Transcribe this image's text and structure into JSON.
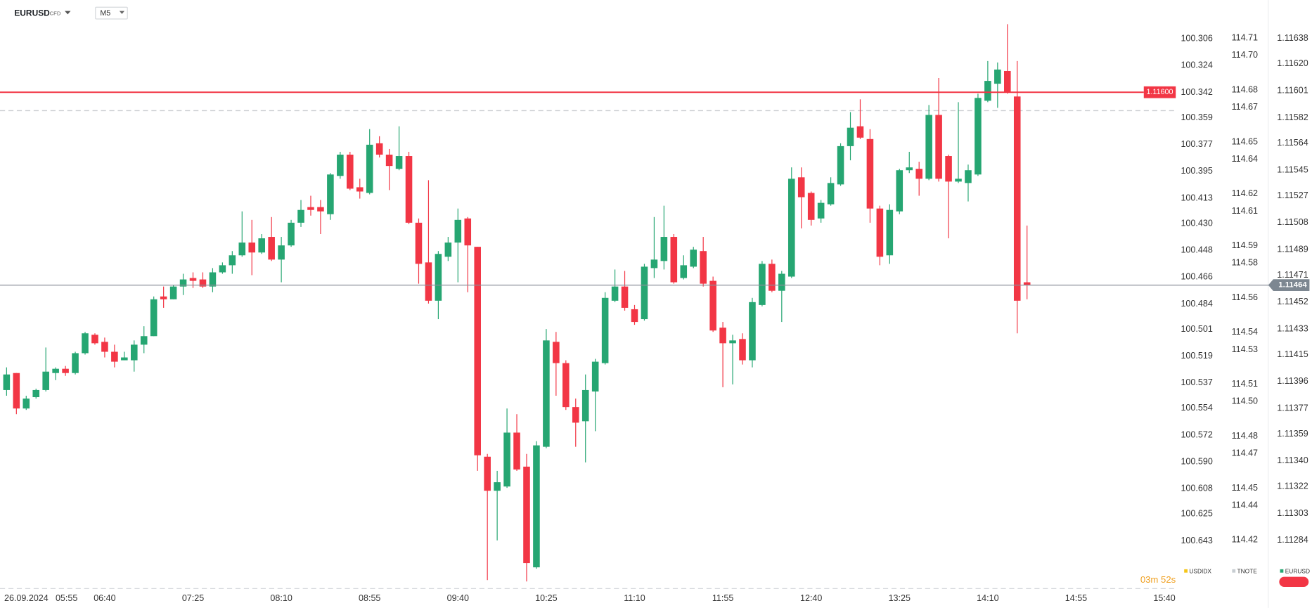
{
  "chart_data": {
    "type": "candlestick",
    "symbol": "EURUSD",
    "instrument_type": "CFD",
    "timeframe": "M5",
    "date": "26.09.2024",
    "categories": [
      null,
      "05:55",
      null,
      null,
      null,
      null,
      null,
      null,
      null,
      null,
      "06:40",
      null,
      null,
      null,
      null,
      null,
      null,
      null,
      null,
      "07:25",
      null,
      null,
      null,
      null,
      null,
      null,
      null,
      null,
      "08:10",
      null,
      null,
      null,
      null,
      null,
      null,
      null,
      null,
      "08:55",
      null,
      null,
      null,
      null,
      null,
      null,
      null,
      null,
      "09:40",
      null,
      null,
      null,
      null,
      null,
      null,
      null,
      null,
      "10:25",
      null,
      null,
      null,
      null,
      null,
      null,
      null,
      null,
      "11:10",
      null,
      null,
      null,
      null,
      null,
      null,
      null,
      null,
      "11:55",
      null,
      null,
      null,
      null,
      null,
      null,
      null,
      null,
      "12:40",
      null,
      null,
      null,
      null,
      null,
      null,
      null,
      null,
      "13:25",
      null,
      null,
      null,
      null,
      null,
      null,
      null,
      null,
      "14:10",
      null,
      null,
      null,
      null,
      null,
      null,
      null,
      null,
      "14:55",
      null,
      null,
      null,
      null,
      null,
      null,
      null,
      null,
      "15:40",
      null
    ],
    "open": [
      1.1139,
      1.11402,
      1.11377,
      1.11385,
      1.1139,
      1.11402,
      1.11405,
      1.11402,
      1.11416,
      1.11429,
      1.11424,
      1.11417,
      1.11411,
      1.11411,
      1.11422,
      1.11428,
      1.11456,
      1.11454,
      1.11463,
      1.11469,
      1.11468,
      1.11463,
      1.11473,
      1.11478,
      1.11485,
      1.11494,
      1.11487,
      1.11498,
      1.11482,
      1.11492,
      1.11508,
      1.11519,
      1.11519,
      1.11514,
      1.11541,
      1.11556,
      1.11533,
      1.11529,
      1.11564,
      1.11556,
      1.11546,
      1.11555,
      1.11508,
      1.1148,
      1.11453,
      1.11484,
      1.11494,
      1.11511,
      1.11491,
      1.11343,
      1.11319,
      1.11322,
      1.1136,
      1.11336,
      1.11265,
      1.1135,
      1.11424,
      1.11409,
      1.11378,
      1.11368,
      1.11389,
      1.11409,
      1.11453,
      1.11463,
      1.11447,
      1.1144,
      1.11476,
      1.11481,
      1.11498,
      1.11469,
      1.11477,
      1.11488,
      1.11467,
      1.11434,
      1.11423,
      1.11426,
      1.11411,
      1.1145,
      1.11479,
      1.1146,
      1.1147,
      1.1154,
      1.11529,
      1.11511,
      1.11521,
      1.11535,
      1.11562,
      1.11576,
      1.11567,
      1.11518,
      1.11485,
      1.11516,
      1.11545,
      1.11546,
      1.11539,
      1.11584,
      1.11555,
      1.11537,
      1.11536,
      1.11542,
      1.11594,
      1.11606,
      1.11615,
      1.11597,
      1.11466,
      null,
      null,
      null,
      null,
      null,
      null,
      null,
      null,
      null,
      null,
      null,
      null,
      null,
      null,
      null
    ],
    "high": [
      1.11406,
      1.11402,
      1.11386,
      1.11391,
      1.1142,
      1.11406,
      1.11407,
      1.11417,
      1.11431,
      1.1143,
      1.11427,
      1.11422,
      1.11417,
      1.11425,
      1.11435,
      1.11456,
      1.11463,
      1.11464,
      1.11472,
      1.11473,
      1.11473,
      1.11476,
      1.1148,
      1.11488,
      1.11516,
      1.1151,
      1.115,
      1.11512,
      1.11498,
      1.1151,
      1.11524,
      1.11527,
      1.11524,
      1.11543,
      1.11558,
      1.11558,
      1.11539,
      1.11574,
      1.11569,
      1.1156,
      1.11576,
      1.11558,
      1.11511,
      1.11538,
      1.11488,
      1.11498,
      1.11518,
      1.11512,
      1.11491,
      1.11345,
      1.11333,
      1.11377,
      1.11373,
      1.11345,
      1.11354,
      1.11433,
      1.11431,
      1.11411,
      1.11384,
      1.11401,
      1.11412,
      1.11459,
      1.11475,
      1.11474,
      1.1145,
      1.11479,
      1.11512,
      1.1152,
      1.115,
      1.11485,
      1.11491,
      1.11498,
      1.1147,
      1.11438,
      1.11429,
      1.1143,
      1.11455,
      1.11481,
      1.11482,
      1.11474,
      1.11547,
      1.11547,
      1.1153,
      1.11524,
      1.1154,
      1.11564,
      1.11586,
      1.11595,
      1.11574,
      1.1152,
      1.11521,
      1.11546,
      1.11558,
      1.11551,
      1.11591,
      1.1161,
      1.11556,
      1.11593,
      1.11549,
      1.11599,
      1.11622,
      1.11621,
      1.11648,
      1.11622,
      1.11506,
      null,
      null,
      null,
      null,
      null,
      null,
      null,
      null,
      null,
      null,
      null,
      null,
      null,
      null,
      null
    ],
    "low": [
      1.11386,
      1.11373,
      1.11376,
      1.11384,
      1.11389,
      1.11397,
      1.114,
      1.11401,
      1.11415,
      1.11422,
      1.11413,
      1.11406,
      1.11411,
      1.11403,
      1.11416,
      1.11428,
      1.11448,
      1.11454,
      1.11457,
      1.11462,
      1.11462,
      1.11459,
      1.11472,
      1.11472,
      1.11484,
      1.11471,
      1.11486,
      1.11481,
      1.11466,
      1.11491,
      1.11505,
      1.11513,
      1.115,
      1.1151,
      1.11539,
      1.11531,
      1.11525,
      1.11528,
      1.11554,
      1.11531,
      1.11545,
      1.11507,
      1.11465,
      1.11451,
      1.1144,
      1.11481,
      1.11466,
      1.11459,
      1.11333,
      1.11256,
      1.11284,
      1.11321,
      1.11333,
      1.11255,
      1.11264,
      1.11349,
      1.11386,
      1.11376,
      1.1135,
      1.11339,
      1.11361,
      1.11408,
      1.11452,
      1.11446,
      1.11436,
      1.11439,
      1.11469,
      1.11475,
      1.11465,
      1.11468,
      1.11476,
      1.11463,
      1.11431,
      1.11392,
      1.11394,
      1.11408,
      1.11406,
      1.11449,
      1.11459,
      1.11438,
      1.11469,
      1.11504,
      1.11506,
      1.11508,
      1.1152,
      1.11534,
      1.11552,
      1.11567,
      1.11508,
      1.11478,
      1.11479,
      1.11514,
      1.11543,
      1.11527,
      1.11538,
      1.11537,
      1.11497,
      1.11536,
      1.11523,
      1.11541,
      1.11593,
      1.11589,
      1.11599,
      1.1143,
      1.11454,
      null,
      null,
      null,
      null,
      null,
      null,
      null,
      null,
      null,
      null,
      null,
      null,
      null,
      null,
      null
    ],
    "close": [
      1.11401,
      1.11377,
      1.11384,
      1.1139,
      1.11403,
      1.11405,
      1.11402,
      1.11416,
      1.1143,
      1.11423,
      1.11417,
      1.1141,
      1.11413,
      1.11422,
      1.11428,
      1.11454,
      1.11454,
      1.11463,
      1.11468,
      1.11467,
      1.11463,
      1.11473,
      1.11478,
      1.11485,
      1.11494,
      1.11487,
      1.11497,
      1.11482,
      1.11492,
      1.11508,
      1.11517,
      1.11517,
      1.11516,
      1.11542,
      1.11556,
      1.11532,
      1.1153,
      1.11563,
      1.11556,
      1.11548,
      1.11555,
      1.11508,
      1.11479,
      1.11453,
      1.11486,
      1.11494,
      1.1151,
      1.11492,
      1.11344,
      1.11319,
      1.11325,
      1.1136,
      1.11334,
      1.11268,
      1.11351,
      1.11425,
      1.11409,
      1.11378,
      1.11367,
      1.1139,
      1.1141,
      1.11455,
      1.11463,
      1.11448,
      1.11438,
      1.11477,
      1.11482,
      1.11498,
      1.11466,
      1.11478,
      1.11489,
      1.11465,
      1.11432,
      1.11423,
      1.11425,
      1.11411,
      1.11452,
      1.11479,
      1.1146,
      1.11472,
      1.11539,
      1.11526,
      1.1151,
      1.11522,
      1.11536,
      1.11562,
      1.11575,
      1.11568,
      1.11518,
      1.11484,
      1.11517,
      1.11545,
      1.11547,
      1.11539,
      1.11584,
      1.11539,
      1.11537,
      1.11539,
      1.11545,
      1.11596,
      1.11608,
      1.11616,
      1.116,
      1.11453,
      1.11464,
      null,
      null,
      null,
      null,
      null,
      null,
      null,
      null,
      null,
      null,
      null,
      null,
      null,
      null,
      null
    ],
    "up_color": "#26a672",
    "down_color": "#f23645",
    "axes": [
      {
        "name": "USDIDX",
        "color": "#f5c518",
        "ylim": [
          100.675,
          100.28
        ],
        "yticks": [
          100.306,
          100.324,
          100.342,
          100.359,
          100.377,
          100.395,
          100.413,
          {
            "value": 100.43,
            "label": "100.430"
          },
          100.448,
          100.466,
          100.484,
          100.501,
          100.519,
          100.537,
          100.554,
          100.572,
          {
            "value": 100.59,
            "label": "100.590"
          },
          100.608,
          100.625,
          100.643
        ]
      },
      {
        "name": "TNOTE",
        "color": "#c8cdd2",
        "ylim": [
          114.392,
          114.732
        ],
        "yticks": [
          114.71,
          {
            "value": 114.7,
            "label": "114.70"
          },
          114.68,
          114.67,
          114.65,
          114.64,
          114.62,
          114.61,
          114.59,
          114.58,
          114.56,
          114.54,
          114.53,
          114.51,
          {
            "value": 114.5,
            "label": "114.50"
          },
          114.48,
          114.47,
          114.45,
          114.44,
          114.42
        ]
      },
      {
        "name": "EURUSD",
        "color": "#26a672",
        "ylim": [
          1.1125,
          1.11665
        ],
        "yticks": [
          1.11638,
          {
            "value": 1.1162,
            "label": "1.11620"
          },
          1.11601,
          1.11582,
          1.11564,
          1.11545,
          1.11527,
          1.11508,
          1.11489,
          1.11471,
          1.11452,
          1.11433,
          1.11415,
          1.11396,
          1.11377,
          1.11359,
          {
            "value": 1.1134,
            "label": "1.11340"
          },
          1.11322,
          1.11303,
          1.11284
        ]
      }
    ],
    "price_lines": [
      {
        "value": 1.116,
        "label": "1.11600",
        "color": "#f23645"
      }
    ],
    "levels": [
      1.11587
    ],
    "countdown": "03m 52s",
    "grid": false
  }
}
